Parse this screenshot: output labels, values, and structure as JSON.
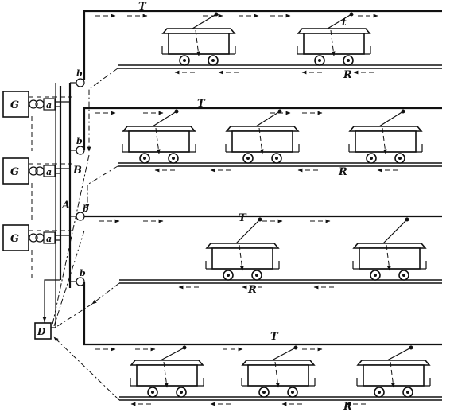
{
  "labels": {
    "generator": "G",
    "connector": "a",
    "busbar_a": "A",
    "busbar_b": "B",
    "switch": "b",
    "distributor": "D",
    "trolley_wire": "T",
    "return_rail": "R",
    "trolley_pole": "t"
  }
}
